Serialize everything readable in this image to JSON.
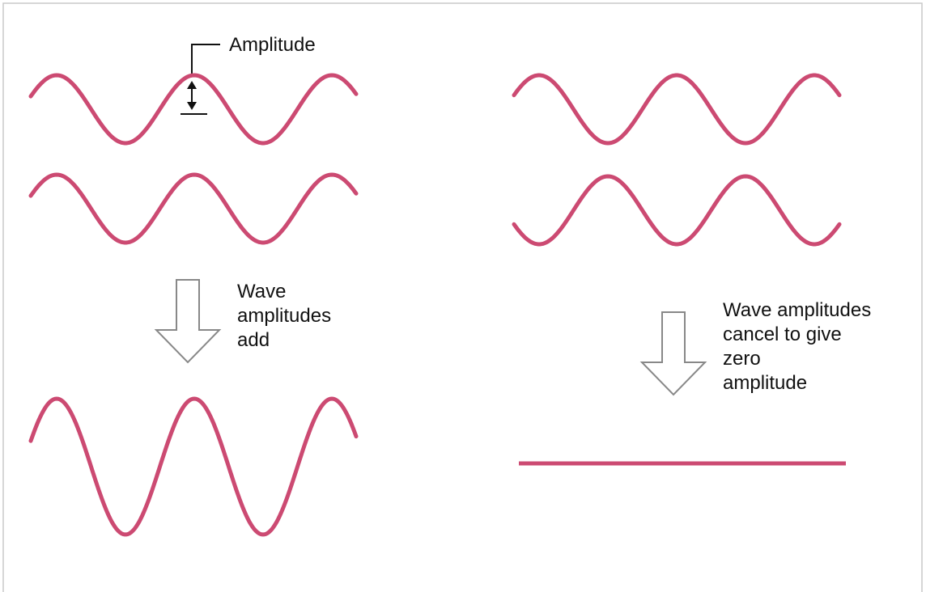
{
  "amplitude_label": "Amplitude",
  "add_caption": [
    "Wave",
    "amplitudes",
    "add"
  ],
  "cancel_caption": [
    "Wave amplitudes",
    "cancel to give",
    "zero",
    "amplitude"
  ]
}
